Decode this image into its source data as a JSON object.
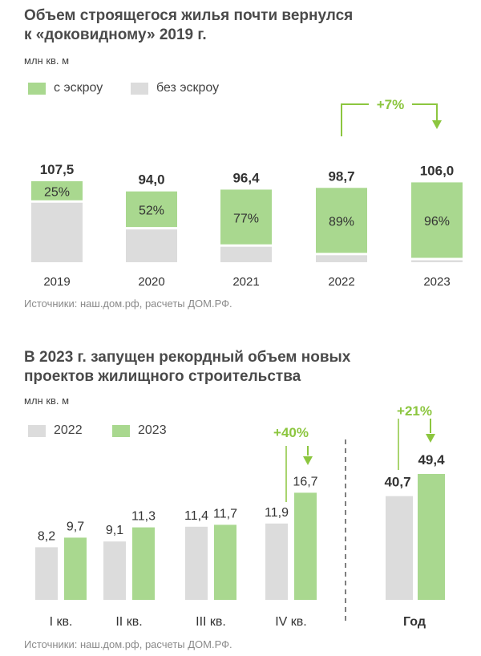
{
  "colors": {
    "green": "#a9d88f",
    "gray": "#dcdcdc",
    "arrow": "#8cc63f",
    "text": "#333333"
  },
  "chart_data": [
    {
      "type": "bar",
      "title_line1": "Объем строящегося жилья почти вернулся",
      "title_line2": "к «доковидному» 2019 г.",
      "unit": "млн кв. м",
      "legend": [
        "с эскроу",
        "без эскроу"
      ],
      "categories": [
        "2019",
        "2020",
        "2021",
        "2022",
        "2023"
      ],
      "totals": [
        107.5,
        94.0,
        96.4,
        98.7,
        106.0
      ],
      "total_labels": [
        "107,5",
        "94,0",
        "96,4",
        "98,7",
        "106,0"
      ],
      "escrow_share": [
        25,
        52,
        77,
        89,
        96
      ],
      "share_labels": [
        "25%",
        "52%",
        "77%",
        "89%",
        "96%"
      ],
      "growth_label": "+7%",
      "source": "Источники: наш.дом.рф, расчеты ДОМ.РФ."
    },
    {
      "type": "bar",
      "title_line1": "В 2023 г. запущен рекордный объем новых",
      "title_line2": "проектов жилищного строительства",
      "unit": "млн кв. м",
      "legend": [
        "2022",
        "2023"
      ],
      "categories": [
        "I кв.",
        "II кв.",
        "III кв.",
        "IV кв."
      ],
      "series": [
        {
          "name": "2022",
          "values": [
            8.2,
            9.1,
            11.4,
            11.9
          ],
          "labels": [
            "8,2",
            "9,1",
            "11,4",
            "11,9"
          ]
        },
        {
          "name": "2023",
          "values": [
            9.7,
            11.3,
            11.7,
            16.7
          ],
          "labels": [
            "9,7",
            "11,3",
            "11,7",
            "16,7"
          ]
        }
      ],
      "q4_growth_label": "+40%",
      "year_category": "Год",
      "year_values": [
        40.7,
        49.4
      ],
      "year_labels": [
        "40,7",
        "49,4"
      ],
      "year_growth_label": "+21%",
      "source": "Источники: наш.дом.рф, расчеты ДОМ.РФ."
    }
  ]
}
